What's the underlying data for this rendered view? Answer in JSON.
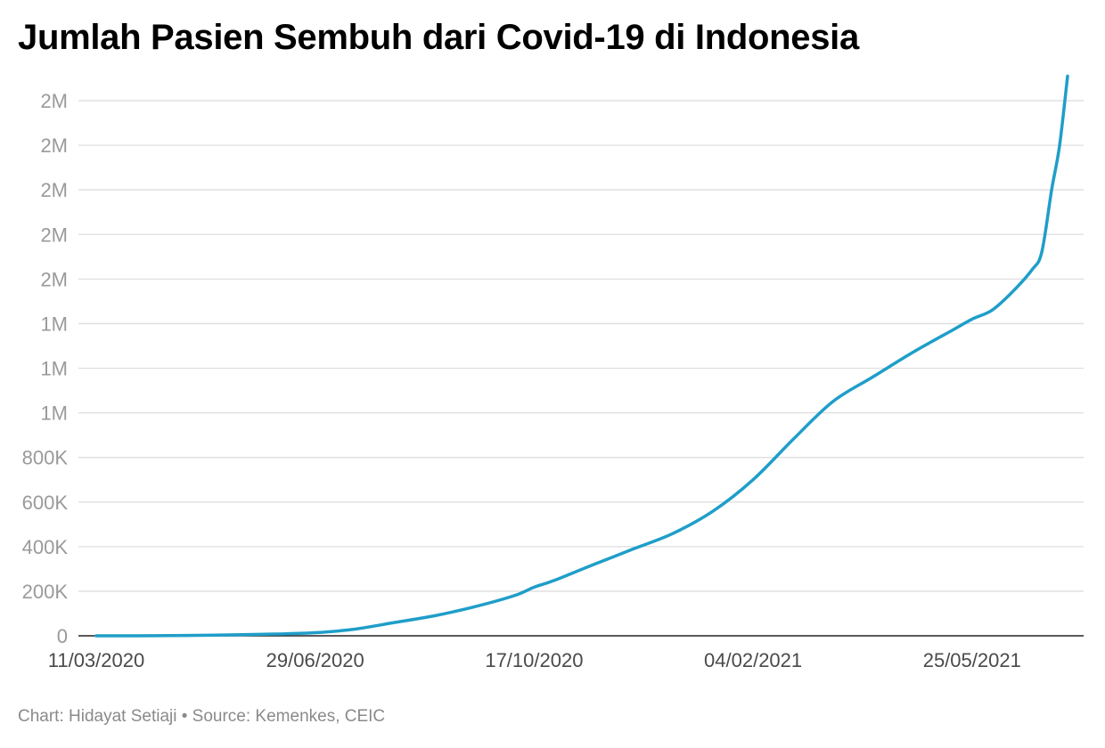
{
  "header": {
    "title": "Jumlah Pasien Sembuh dari Covid-19 di Indonesia"
  },
  "footer": {
    "credit": "Chart: Hidayat Setiaji • Source: Kemenkes, CEIC"
  },
  "chart_data": {
    "type": "line",
    "title": "Jumlah Pasien Sembuh dari Covid-19 di Indonesia",
    "xlabel": "",
    "ylabel": "",
    "x_start": "2020-03-11",
    "x_end": "2021-07-12",
    "ylim": [
      0,
      2500000
    ],
    "grid": true,
    "legend": "none",
    "line_color": "#1f9ec9",
    "y_ticks": [
      {
        "value": 0,
        "label": "0"
      },
      {
        "value": 200000,
        "label": "200K"
      },
      {
        "value": 400000,
        "label": "400K"
      },
      {
        "value": 600000,
        "label": "600K"
      },
      {
        "value": 800000,
        "label": "800K"
      },
      {
        "value": 1000000,
        "label": "1M"
      },
      {
        "value": 1200000,
        "label": "1M"
      },
      {
        "value": 1400000,
        "label": "1M"
      },
      {
        "value": 1600000,
        "label": "2M"
      },
      {
        "value": 1800000,
        "label": "2M"
      },
      {
        "value": 2000000,
        "label": "2M"
      },
      {
        "value": 2200000,
        "label": "2M"
      },
      {
        "value": 2400000,
        "label": "2M"
      }
    ],
    "x_ticks": [
      {
        "date": "2020-03-11",
        "label": "11/03/2020"
      },
      {
        "date": "2020-06-29",
        "label": "29/06/2020"
      },
      {
        "date": "2020-10-17",
        "label": "17/10/2020"
      },
      {
        "date": "2021-02-04",
        "label": "04/02/2021"
      },
      {
        "date": "2021-05-25",
        "label": "25/05/2021"
      }
    ],
    "series": [
      {
        "points": [
          {
            "date": "2020-03-11",
            "y": 0
          },
          {
            "date": "2020-04-10",
            "y": 400
          },
          {
            "date": "2020-05-10",
            "y": 3000
          },
          {
            "date": "2020-06-09",
            "y": 8000
          },
          {
            "date": "2020-06-29",
            "y": 14000
          },
          {
            "date": "2020-07-19",
            "y": 30000
          },
          {
            "date": "2020-08-08",
            "y": 60000
          },
          {
            "date": "2020-08-28",
            "y": 90000
          },
          {
            "date": "2020-09-17",
            "y": 130000
          },
          {
            "date": "2020-10-07",
            "y": 180000
          },
          {
            "date": "2020-10-17",
            "y": 218000
          },
          {
            "date": "2020-10-27",
            "y": 248000
          },
          {
            "date": "2020-11-16",
            "y": 320000
          },
          {
            "date": "2020-12-06",
            "y": 390000
          },
          {
            "date": "2020-12-26",
            "y": 460000
          },
          {
            "date": "2021-01-15",
            "y": 560000
          },
          {
            "date": "2021-02-04",
            "y": 700000
          },
          {
            "date": "2021-02-24",
            "y": 880000
          },
          {
            "date": "2021-03-16",
            "y": 1050000
          },
          {
            "date": "2021-04-05",
            "y": 1160000
          },
          {
            "date": "2021-04-25",
            "y": 1270000
          },
          {
            "date": "2021-05-15",
            "y": 1370000
          },
          {
            "date": "2021-05-25",
            "y": 1420000
          },
          {
            "date": "2021-06-04",
            "y": 1460000
          },
          {
            "date": "2021-06-14",
            "y": 1540000
          },
          {
            "date": "2021-06-24",
            "y": 1640000
          },
          {
            "date": "2021-06-29",
            "y": 1720000
          },
          {
            "date": "2021-07-04",
            "y": 2000000
          },
          {
            "date": "2021-07-08",
            "y": 2200000
          },
          {
            "date": "2021-07-12",
            "y": 2510000
          }
        ]
      }
    ]
  }
}
